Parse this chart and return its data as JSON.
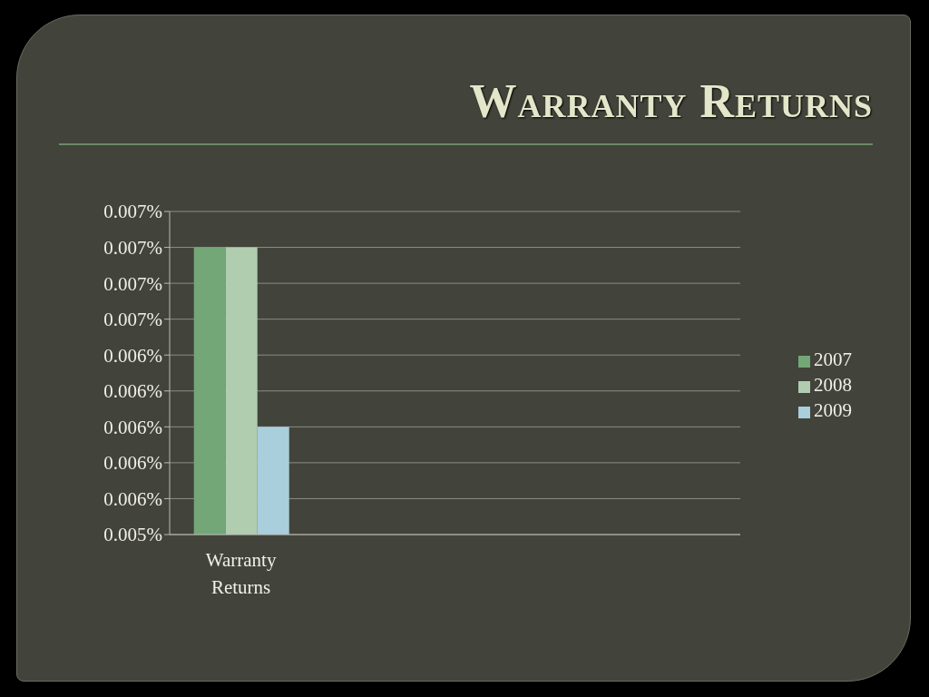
{
  "chart_data": {
    "type": "bar",
    "title": "Warranty Returns",
    "categories": [
      "Warranty Returns",
      null,
      null,
      null
    ],
    "series": [
      {
        "name": "2007",
        "color": "#73a777",
        "values": [
          0.007,
          null,
          null,
          null
        ]
      },
      {
        "name": "2008",
        "color": "#b0cdb0",
        "values": [
          0.007,
          null,
          null,
          null
        ]
      },
      {
        "name": "2009",
        "color": "#a9cedc",
        "values": [
          0.006,
          null,
          null,
          null
        ]
      }
    ],
    "ylim": [
      0.0054,
      0.0072
    ],
    "yticks": [
      {
        "value": 0.0054,
        "label": "0.005%"
      },
      {
        "value": 0.0056,
        "label": "0.006%"
      },
      {
        "value": 0.0058,
        "label": "0.006%"
      },
      {
        "value": 0.006,
        "label": "0.006%"
      },
      {
        "value": 0.0062,
        "label": "0.006%"
      },
      {
        "value": 0.0064,
        "label": "0.006%"
      },
      {
        "value": 0.0066,
        "label": "0.007%"
      },
      {
        "value": 0.0068,
        "label": "0.007%"
      },
      {
        "value": 0.007,
        "label": "0.007%"
      },
      {
        "value": 0.0072,
        "label": "0.007%"
      }
    ],
    "grid": "y",
    "legend": "right"
  }
}
